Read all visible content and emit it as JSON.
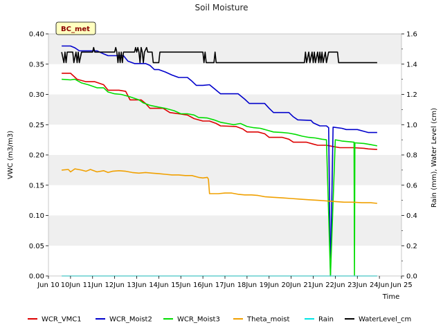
{
  "chart_data": {
    "type": "line",
    "title": "Soil Moisture",
    "station_label": "BC_met",
    "xlabel": "Time",
    "ylabel": "VWC (m3/m3)",
    "y2label": "Rain (mm), Water Level (cm)",
    "xlim": [
      9,
      25
    ],
    "ylim": [
      0,
      0.4
    ],
    "y2lim": [
      0,
      1.6
    ],
    "x_ticks": [
      9,
      10,
      11,
      12,
      13,
      14,
      15,
      16,
      17,
      18,
      19,
      20,
      21,
      22,
      23,
      24,
      25
    ],
    "x_tick_labels": [
      "Jun 10",
      "10Jun",
      "11Jun",
      "12Jun",
      "13Jun",
      "14Jun",
      "15Jun",
      "16Jun",
      "17Jun",
      "18Jun",
      "19Jun",
      "20Jun",
      "21Jun",
      "22Jun",
      "23Jun",
      "24Jun",
      "Jun 25"
    ],
    "y_ticks": [
      0.0,
      0.05,
      0.1,
      0.15,
      0.2,
      0.25,
      0.3,
      0.35,
      0.4
    ],
    "y_tick_labels": [
      "0.00",
      "0.05",
      "0.10",
      "0.15",
      "0.20",
      "0.25",
      "0.30",
      "0.35",
      "0.40"
    ],
    "y2_ticks": [
      0.0,
      0.2,
      0.4,
      0.6,
      0.8,
      1.0,
      1.2,
      1.4,
      1.6
    ],
    "y2_tick_labels": [
      "0.0",
      "0.2",
      "0.4",
      "0.6",
      "0.8",
      "1.0",
      "1.2",
      "1.4",
      "1.6"
    ],
    "series": [
      {
        "name": "WCR_VMC1",
        "color": "#dd0000",
        "axis": "left",
        "points": [
          [
            9.6,
            0.335
          ],
          [
            10.0,
            0.335
          ],
          [
            10.3,
            0.325
          ],
          [
            10.7,
            0.321
          ],
          [
            11.1,
            0.321
          ],
          [
            11.5,
            0.316
          ],
          [
            11.7,
            0.307
          ],
          [
            12.2,
            0.307
          ],
          [
            12.5,
            0.305
          ],
          [
            12.7,
            0.291
          ],
          [
            13.2,
            0.291
          ],
          [
            13.4,
            0.285
          ],
          [
            13.6,
            0.277
          ],
          [
            14.2,
            0.277
          ],
          [
            14.5,
            0.27
          ],
          [
            14.9,
            0.268
          ],
          [
            15.3,
            0.266
          ],
          [
            15.6,
            0.26
          ],
          [
            16.0,
            0.256
          ],
          [
            16.3,
            0.256
          ],
          [
            16.6,
            0.252
          ],
          [
            16.8,
            0.248
          ],
          [
            17.5,
            0.247
          ],
          [
            17.8,
            0.243
          ],
          [
            18.0,
            0.238
          ],
          [
            18.5,
            0.238
          ],
          [
            18.8,
            0.235
          ],
          [
            19.0,
            0.229
          ],
          [
            19.6,
            0.229
          ],
          [
            19.9,
            0.226
          ],
          [
            20.1,
            0.221
          ],
          [
            20.7,
            0.221
          ],
          [
            21.0,
            0.218
          ],
          [
            21.2,
            0.216
          ],
          [
            21.6,
            0.216
          ],
          [
            21.9,
            0.214
          ],
          [
            22.2,
            0.212
          ],
          [
            22.8,
            0.212
          ],
          [
            23.3,
            0.211
          ],
          [
            23.5,
            0.21
          ],
          [
            23.9,
            0.209
          ]
        ]
      },
      {
        "name": "WCR_Moist2",
        "color": "#0000cc",
        "axis": "left",
        "points": [
          [
            9.6,
            0.38
          ],
          [
            10.0,
            0.38
          ],
          [
            10.2,
            0.377
          ],
          [
            10.4,
            0.372
          ],
          [
            11.2,
            0.372
          ],
          [
            11.5,
            0.367
          ],
          [
            11.7,
            0.364
          ],
          [
            12.4,
            0.364
          ],
          [
            12.6,
            0.355
          ],
          [
            12.9,
            0.351
          ],
          [
            13.4,
            0.351
          ],
          [
            13.6,
            0.348
          ],
          [
            13.8,
            0.341
          ],
          [
            14.0,
            0.341
          ],
          [
            14.3,
            0.337
          ],
          [
            14.6,
            0.332
          ],
          [
            14.9,
            0.328
          ],
          [
            15.3,
            0.328
          ],
          [
            15.5,
            0.322
          ],
          [
            15.7,
            0.315
          ],
          [
            16.0,
            0.315
          ],
          [
            16.3,
            0.316
          ],
          [
            16.5,
            0.31
          ],
          [
            16.8,
            0.301
          ],
          [
            17.6,
            0.301
          ],
          [
            17.9,
            0.292
          ],
          [
            18.1,
            0.285
          ],
          [
            18.8,
            0.285
          ],
          [
            19.0,
            0.277
          ],
          [
            19.2,
            0.27
          ],
          [
            19.9,
            0.27
          ],
          [
            20.1,
            0.263
          ],
          [
            20.3,
            0.258
          ],
          [
            20.9,
            0.257
          ],
          [
            21.0,
            0.253
          ],
          [
            21.3,
            0.248
          ],
          [
            21.6,
            0.248
          ],
          [
            21.7,
            0.245
          ],
          [
            21.78,
            0.0
          ],
          [
            21.9,
            0.246
          ],
          [
            22.3,
            0.244
          ],
          [
            22.5,
            0.242
          ],
          [
            23.0,
            0.242
          ],
          [
            23.3,
            0.239
          ],
          [
            23.5,
            0.237
          ],
          [
            23.9,
            0.237
          ]
        ]
      },
      {
        "name": "WCR_Moist3",
        "color": "#00dd00",
        "axis": "left",
        "points": [
          [
            9.6,
            0.325
          ],
          [
            10.0,
            0.324
          ],
          [
            10.2,
            0.325
          ],
          [
            10.5,
            0.319
          ],
          [
            10.8,
            0.316
          ],
          [
            11.2,
            0.311
          ],
          [
            11.5,
            0.311
          ],
          [
            11.7,
            0.304
          ],
          [
            12.0,
            0.301
          ],
          [
            12.3,
            0.3
          ],
          [
            12.7,
            0.296
          ],
          [
            13.1,
            0.291
          ],
          [
            13.3,
            0.286
          ],
          [
            13.6,
            0.282
          ],
          [
            14.0,
            0.279
          ],
          [
            14.3,
            0.277
          ],
          [
            14.7,
            0.273
          ],
          [
            15.0,
            0.268
          ],
          [
            15.3,
            0.268
          ],
          [
            15.6,
            0.266
          ],
          [
            15.8,
            0.262
          ],
          [
            16.2,
            0.261
          ],
          [
            16.5,
            0.258
          ],
          [
            16.8,
            0.254
          ],
          [
            17.1,
            0.252
          ],
          [
            17.4,
            0.25
          ],
          [
            17.7,
            0.252
          ],
          [
            18.0,
            0.247
          ],
          [
            18.3,
            0.245
          ],
          [
            18.6,
            0.244
          ],
          [
            18.9,
            0.241
          ],
          [
            19.2,
            0.238
          ],
          [
            19.6,
            0.237
          ],
          [
            19.9,
            0.236
          ],
          [
            20.2,
            0.234
          ],
          [
            20.5,
            0.231
          ],
          [
            20.8,
            0.229
          ],
          [
            21.1,
            0.228
          ],
          [
            21.4,
            0.226
          ],
          [
            21.6,
            0.225
          ],
          [
            21.78,
            0.0
          ],
          [
            22.0,
            0.225
          ],
          [
            22.3,
            0.223
          ],
          [
            22.6,
            0.222
          ],
          [
            22.85,
            0.221
          ],
          [
            22.87,
            0.0
          ],
          [
            22.89,
            0.22
          ],
          [
            23.3,
            0.219
          ],
          [
            23.6,
            0.217
          ],
          [
            23.9,
            0.215
          ]
        ]
      },
      {
        "name": "Theta_moist",
        "color": "#f0a000",
        "axis": "left",
        "points": [
          [
            9.6,
            0.175
          ],
          [
            9.9,
            0.176
          ],
          [
            10.0,
            0.172
          ],
          [
            10.2,
            0.177
          ],
          [
            10.5,
            0.175
          ],
          [
            10.7,
            0.173
          ],
          [
            10.9,
            0.176
          ],
          [
            11.2,
            0.172
          ],
          [
            11.5,
            0.174
          ],
          [
            11.7,
            0.171
          ],
          [
            11.9,
            0.173
          ],
          [
            12.2,
            0.174
          ],
          [
            12.5,
            0.173
          ],
          [
            12.8,
            0.171
          ],
          [
            13.1,
            0.17
          ],
          [
            13.4,
            0.171
          ],
          [
            13.7,
            0.17
          ],
          [
            14.0,
            0.169
          ],
          [
            14.3,
            0.168
          ],
          [
            14.6,
            0.167
          ],
          [
            14.9,
            0.167
          ],
          [
            15.2,
            0.166
          ],
          [
            15.5,
            0.166
          ],
          [
            15.8,
            0.163
          ],
          [
            16.0,
            0.162
          ],
          [
            16.2,
            0.163
          ],
          [
            16.25,
            0.16
          ],
          [
            16.3,
            0.136
          ],
          [
            16.7,
            0.136
          ],
          [
            17.0,
            0.137
          ],
          [
            17.3,
            0.137
          ],
          [
            17.6,
            0.135
          ],
          [
            17.9,
            0.134
          ],
          [
            18.2,
            0.134
          ],
          [
            18.5,
            0.133
          ],
          [
            18.8,
            0.131
          ],
          [
            19.2,
            0.13
          ],
          [
            19.6,
            0.129
          ],
          [
            20.0,
            0.128
          ],
          [
            20.4,
            0.127
          ],
          [
            20.8,
            0.126
          ],
          [
            21.2,
            0.125
          ],
          [
            21.6,
            0.124
          ],
          [
            22.0,
            0.123
          ],
          [
            22.4,
            0.122
          ],
          [
            22.8,
            0.122
          ],
          [
            23.2,
            0.121
          ],
          [
            23.6,
            0.121
          ],
          [
            23.9,
            0.12
          ]
        ]
      },
      {
        "name": "Rain",
        "color": "#00e5e5",
        "axis": "right",
        "points": [
          [
            9.6,
            0.0
          ],
          [
            23.9,
            0.0
          ]
        ]
      },
      {
        "name": "WaterLevel_cm",
        "color": "#000000",
        "axis": "right",
        "points": [
          [
            9.6,
            1.48
          ],
          [
            9.7,
            1.41
          ],
          [
            9.75,
            1.48
          ],
          [
            9.8,
            1.41
          ],
          [
            9.85,
            1.48
          ],
          [
            10.1,
            1.48
          ],
          [
            10.15,
            1.41
          ],
          [
            10.25,
            1.48
          ],
          [
            10.3,
            1.41
          ],
          [
            10.35,
            1.48
          ],
          [
            10.4,
            1.41
          ],
          [
            10.5,
            1.48
          ],
          [
            11.0,
            1.48
          ],
          [
            11.05,
            1.51
          ],
          [
            11.1,
            1.48
          ],
          [
            12.0,
            1.48
          ],
          [
            12.05,
            1.51
          ],
          [
            12.1,
            1.48
          ],
          [
            12.15,
            1.41
          ],
          [
            12.2,
            1.48
          ],
          [
            12.25,
            1.41
          ],
          [
            12.3,
            1.48
          ],
          [
            12.35,
            1.41
          ],
          [
            12.4,
            1.48
          ],
          [
            12.6,
            1.48
          ],
          [
            12.9,
            1.48
          ],
          [
            12.95,
            1.51
          ],
          [
            13.0,
            1.48
          ],
          [
            13.05,
            1.51
          ],
          [
            13.1,
            1.48
          ],
          [
            13.15,
            1.41
          ],
          [
            13.2,
            1.51
          ],
          [
            13.25,
            1.48
          ],
          [
            13.3,
            1.41
          ],
          [
            13.35,
            1.48
          ],
          [
            13.45,
            1.51
          ],
          [
            13.5,
            1.48
          ],
          [
            13.7,
            1.48
          ],
          [
            13.75,
            1.41
          ],
          [
            14.0,
            1.41
          ],
          [
            14.05,
            1.48
          ],
          [
            16.0,
            1.48
          ],
          [
            16.05,
            1.41
          ],
          [
            16.1,
            1.48
          ],
          [
            16.15,
            1.41
          ],
          [
            16.5,
            1.41
          ],
          [
            16.55,
            1.48
          ],
          [
            16.6,
            1.41
          ],
          [
            20.6,
            1.41
          ],
          [
            20.65,
            1.48
          ],
          [
            20.7,
            1.41
          ],
          [
            20.8,
            1.48
          ],
          [
            20.85,
            1.41
          ],
          [
            20.95,
            1.48
          ],
          [
            21.0,
            1.41
          ],
          [
            21.05,
            1.48
          ],
          [
            21.1,
            1.41
          ],
          [
            21.2,
            1.48
          ],
          [
            21.25,
            1.41
          ],
          [
            21.3,
            1.48
          ],
          [
            21.35,
            1.41
          ],
          [
            21.4,
            1.48
          ],
          [
            21.45,
            1.41
          ],
          [
            21.55,
            1.48
          ],
          [
            21.6,
            1.41
          ],
          [
            21.7,
            1.48
          ],
          [
            22.0,
            1.48
          ],
          [
            22.1,
            1.48
          ],
          [
            22.15,
            1.41
          ],
          [
            23.9,
            1.41
          ]
        ]
      }
    ],
    "legend": [
      {
        "label": "WCR_VMC1",
        "color": "#dd0000"
      },
      {
        "label": "WCR_Moist2",
        "color": "#0000cc"
      },
      {
        "label": "WCR_Moist3",
        "color": "#00dd00"
      },
      {
        "label": "Theta_moist",
        "color": "#f0a000"
      },
      {
        "label": "Rain",
        "color": "#00e5e5"
      },
      {
        "label": "WaterLevel_cm",
        "color": "#000000"
      }
    ],
    "legend_position": "bottom"
  }
}
